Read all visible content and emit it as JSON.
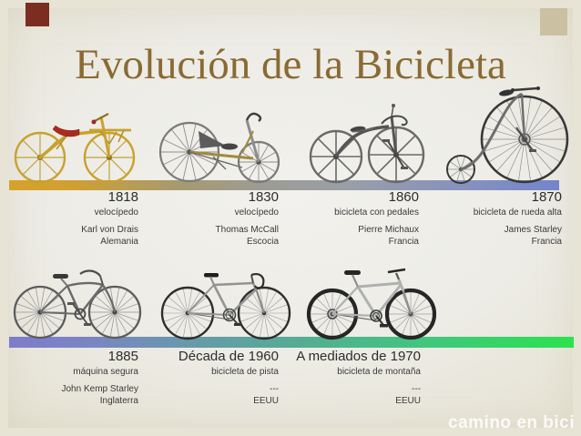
{
  "slide": {
    "title": "Evolución de la Bicicleta",
    "watermark": "camino en bici",
    "colors": {
      "title": "#8a6a33",
      "background": "#edece6",
      "decor_red_square": "#7c2d21",
      "decor_tan_square": "#cbc1a2",
      "bar_top_gradient": [
        "#d7a22b",
        "#9d9c94",
        "#7385cb"
      ],
      "bar_bottom_gradient": [
        "#7e7cca",
        "#54ad93",
        "#2be24e"
      ],
      "text_dark": "#2d2d2d"
    }
  },
  "timeline": {
    "top": [
      {
        "date": "1818",
        "type": "velocípedo",
        "person": "Karl von Drais",
        "place": "Alemania",
        "icon": "draisine-illustration"
      },
      {
        "date": "1830",
        "type": "velocípedo",
        "person": "Thomas McCall",
        "place": "Escocia",
        "icon": "treadle-velocipede-illustration"
      },
      {
        "date": "1860",
        "type": "bicicleta con pedales",
        "person": "Pierre Michaux",
        "place": "Francia",
        "icon": "boneshaker-illustration"
      },
      {
        "date": "1870",
        "type": "bicicleta de rueda alta",
        "person": "James Starley",
        "place": "Francia",
        "icon": "penny-farthing-illustration"
      }
    ],
    "bottom": [
      {
        "date": "1885",
        "type": "máquina segura",
        "person": "John Kemp Starley",
        "place": "Inglaterra",
        "icon": "safety-bicycle-illustration"
      },
      {
        "date": "Década de 1960",
        "type": "bicicleta de pista",
        "person": "---",
        "place": "EEUU",
        "icon": "track-bicycle-illustration"
      },
      {
        "date": "A mediados de 1970",
        "type": "bicicleta de montaña",
        "person": "---",
        "place": "EEUU",
        "icon": "mountain-bike-illustration"
      }
    ]
  }
}
